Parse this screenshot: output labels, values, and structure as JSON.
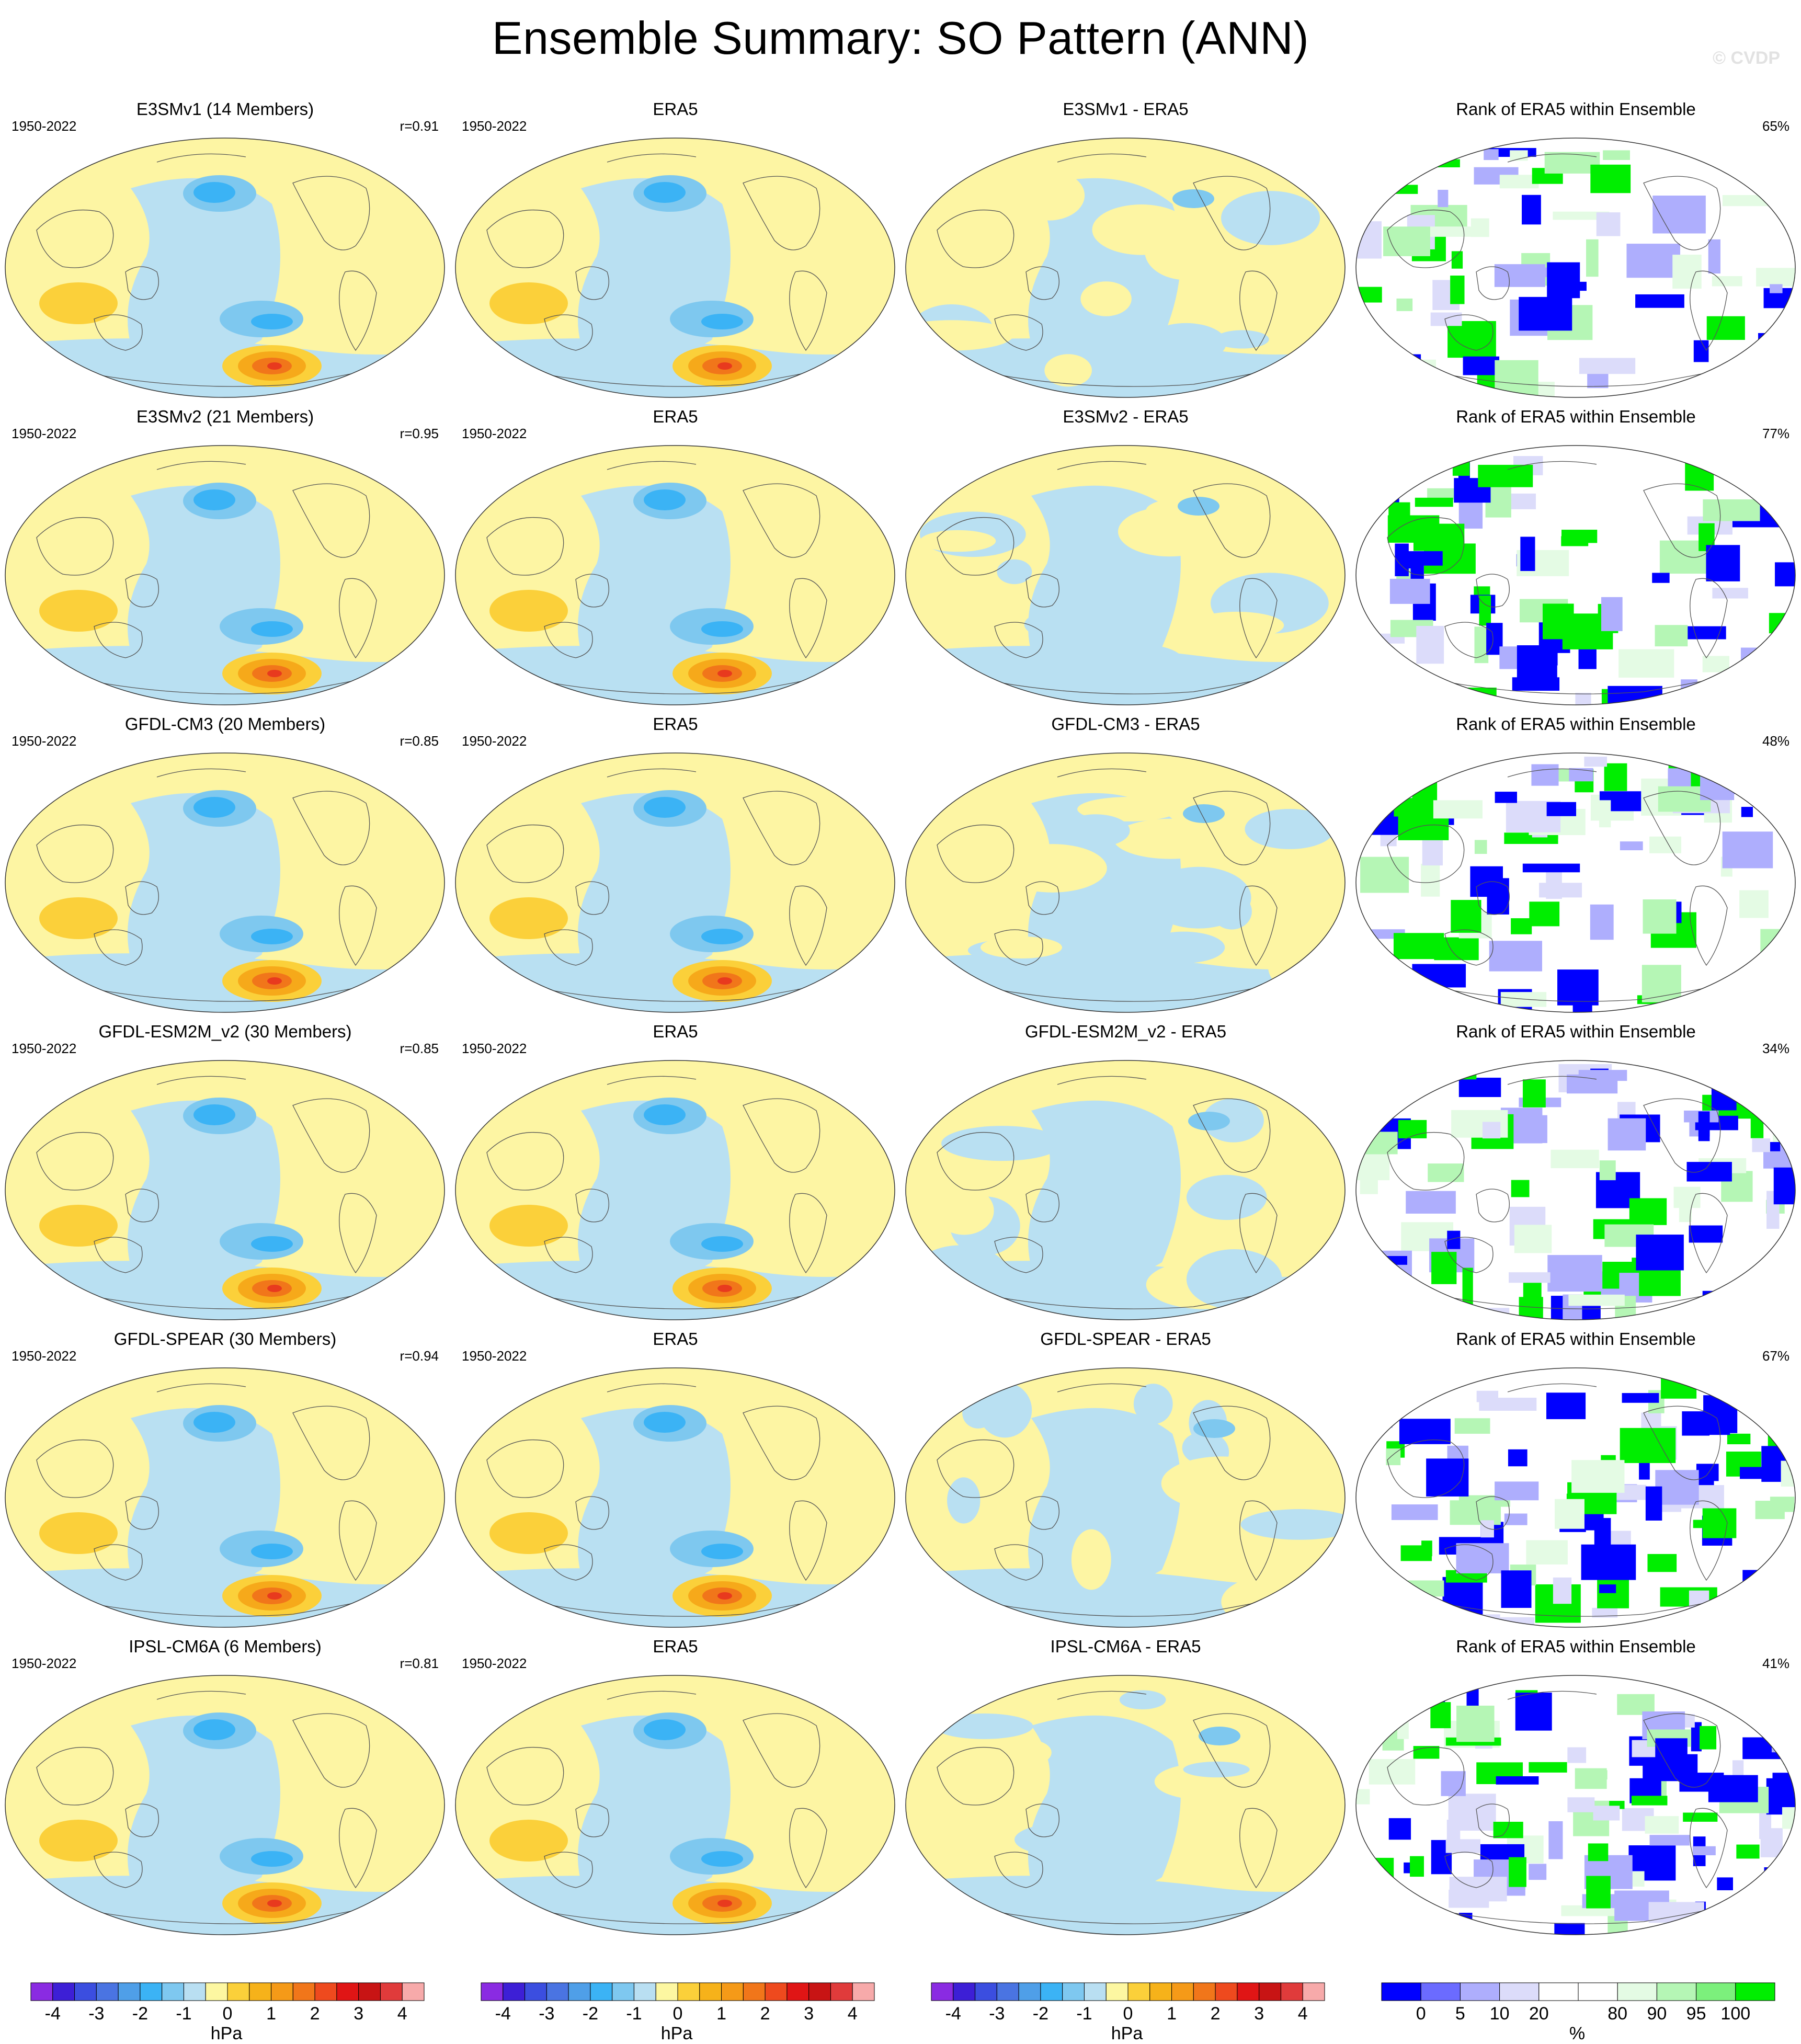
{
  "header": {
    "title": "Ensemble Summary: SO Pattern (ANN)",
    "watermark": "© CVDP"
  },
  "chart_data": {
    "type": "heatmap",
    "grid": false,
    "rows": [
      {
        "model_title": "E3SMv1 (14 Members)",
        "period": "1950-2022",
        "pattern_corr": "r=0.91",
        "obs_title": "ERA5",
        "diff_title": "E3SMv1 - ERA5",
        "rank_title": "Rank of ERA5 within Ensemble",
        "rank_pct": "65%"
      },
      {
        "model_title": "E3SMv2 (21 Members)",
        "period": "1950-2022",
        "pattern_corr": "r=0.95",
        "obs_title": "ERA5",
        "diff_title": "E3SMv2 - ERA5",
        "rank_title": "Rank of ERA5 within Ensemble",
        "rank_pct": "77%"
      },
      {
        "model_title": "GFDL-CM3 (20 Members)",
        "period": "1950-2022",
        "pattern_corr": "r=0.85",
        "obs_title": "ERA5",
        "diff_title": "GFDL-CM3 - ERA5",
        "rank_title": "Rank of ERA5 within Ensemble",
        "rank_pct": "48%"
      },
      {
        "model_title": "GFDL-ESM2M_v2 (30 Members)",
        "period": "1950-2022",
        "pattern_corr": "r=0.85",
        "obs_title": "ERA5",
        "diff_title": "GFDL-ESM2M_v2 - ERA5",
        "rank_title": "Rank of ERA5 within Ensemble",
        "rank_pct": "34%"
      },
      {
        "model_title": "GFDL-SPEAR (30 Members)",
        "period": "1950-2022",
        "pattern_corr": "r=0.94",
        "obs_title": "ERA5",
        "diff_title": "GFDL-SPEAR - ERA5",
        "rank_title": "Rank of ERA5 within Ensemble",
        "rank_pct": "67%"
      },
      {
        "model_title": "IPSL-CM6A (6 Members)",
        "period": "1950-2022",
        "pattern_corr": "r=0.81",
        "obs_title": "ERA5",
        "diff_title": "IPSL-CM6A - ERA5",
        "rank_title": "Rank of ERA5 within Ensemble",
        "rank_pct": "41%"
      }
    ],
    "hpa_colorbar": {
      "unit": "hPa",
      "ticks": [
        "-4",
        "-3",
        "-2",
        "-1",
        "0",
        "1",
        "2",
        "3",
        "4"
      ],
      "colors": [
        "#8a2be2",
        "#3d1fd6",
        "#3b4ee0",
        "#4a74e2",
        "#4f9fe8",
        "#3bb3f5",
        "#7ec8f0",
        "#b9dff2",
        "#fdf7a1",
        "#fbd03a",
        "#f6b21a",
        "#f59a18",
        "#f1761a",
        "#ee4a1e",
        "#e01515",
        "#c81414",
        "#e03b3b",
        "#f7aaaa"
      ]
    },
    "rank_colorbar": {
      "unit": "%",
      "ticks": [
        "0",
        "5",
        "10",
        "20",
        "80",
        "90",
        "95",
        "100"
      ],
      "colors": [
        "#0000ff",
        "#6b6bff",
        "#aeaefd",
        "#dcdcfa",
        "#ffffff",
        "#ffffff",
        "#e4fbe4",
        "#b5f6b5",
        "#7cf07c",
        "#00ee00"
      ]
    }
  }
}
